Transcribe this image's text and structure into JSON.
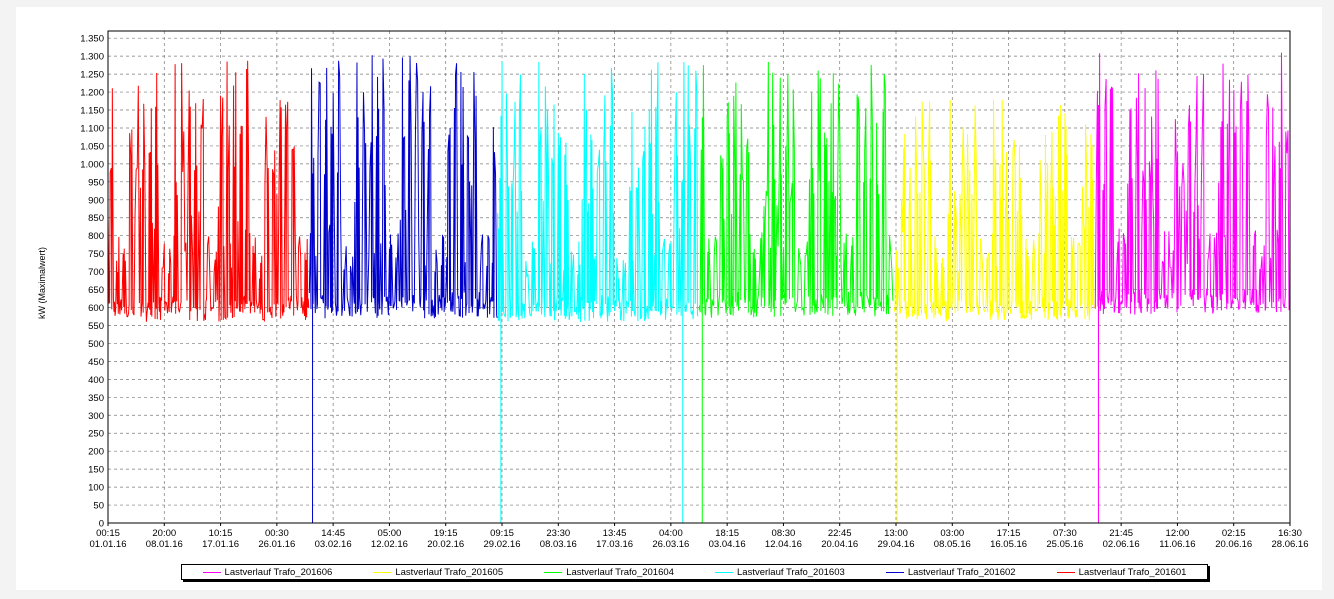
{
  "chart_data": {
    "type": "line",
    "ylabel": "kW (Maximalwert)",
    "ylim": [
      0,
      1370
    ],
    "yticks": [
      0,
      50,
      100,
      150,
      200,
      250,
      300,
      350,
      400,
      450,
      500,
      550,
      600,
      650,
      700,
      750,
      800,
      850,
      900,
      950,
      1000,
      1050,
      1100,
      1150,
      1200,
      1250,
      1300,
      1350
    ],
    "ytick_labels": [
      "0",
      "50",
      "100",
      "150",
      "200",
      "250",
      "300",
      "350",
      "400",
      "450",
      "500",
      "550",
      "600",
      "650",
      "700",
      "750",
      "800",
      "850",
      "900",
      "950",
      "1.000",
      "1.050",
      "1.100",
      "1.150",
      "1.200",
      "1.250",
      "1.300",
      "1.350"
    ],
    "x_range": [
      "2016-01-01 00:15",
      "2016-06-30 23:45"
    ],
    "grid": true,
    "legend_position": "bottom",
    "xticks": [
      {
        "time": "00:15",
        "date": "01.01.16"
      },
      {
        "time": "20:00",
        "date": "08.01.16"
      },
      {
        "time": "10:15",
        "date": "17.01.16"
      },
      {
        "time": "00:30",
        "date": "26.01.16"
      },
      {
        "time": "14:45",
        "date": "03.02.16"
      },
      {
        "time": "05:00",
        "date": "12.02.16"
      },
      {
        "time": "19:15",
        "date": "20.02.16"
      },
      {
        "time": "09:15",
        "date": "29.02.16"
      },
      {
        "time": "23:30",
        "date": "08.03.16"
      },
      {
        "time": "13:45",
        "date": "17.03.16"
      },
      {
        "time": "04:00",
        "date": "26.03.16"
      },
      {
        "time": "18:15",
        "date": "03.04.16"
      },
      {
        "time": "08:30",
        "date": "12.04.16"
      },
      {
        "time": "22:45",
        "date": "20.04.16"
      },
      {
        "time": "13:00",
        "date": "29.04.16"
      },
      {
        "time": "03:00",
        "date": "08.05.16"
      },
      {
        "time": "17:15",
        "date": "16.05.16"
      },
      {
        "time": "07:30",
        "date": "25.05.16"
      },
      {
        "time": "21:45",
        "date": "02.06.16"
      },
      {
        "time": "12:00",
        "date": "11.06.16"
      },
      {
        "time": "02:15",
        "date": "20.06.16"
      },
      {
        "time": "16:30",
        "date": "28.06.16"
      }
    ],
    "series": [
      {
        "name": "Lastverlauf Trafo_201601",
        "color": "#ff0000",
        "start": "2016-01-01",
        "end": "2016-01-31",
        "base": 600,
        "peak_max": 1350,
        "dips": []
      },
      {
        "name": "Lastverlauf Trafo_201602",
        "color": "#0000cc",
        "start": "2016-02-01",
        "end": "2016-02-29",
        "base": 610,
        "peak_max": 1370,
        "dips": [
          {
            "date": "2016-02-01",
            "value": 0
          }
        ]
      },
      {
        "name": "Lastverlauf Trafo_201603",
        "color": "#00ffff",
        "start": "2016-03-01",
        "end": "2016-03-31",
        "base": 600,
        "peak_max": 1350,
        "dips": [
          {
            "date": "2016-03-01",
            "value": 0
          },
          {
            "date": "2016-03-29",
            "value": 0
          }
        ]
      },
      {
        "name": "Lastverlauf Trafo_201604",
        "color": "#00ff00",
        "start": "2016-04-01",
        "end": "2016-04-30",
        "base": 610,
        "peak_max": 1345,
        "dips": [
          {
            "date": "2016-04-01",
            "value": 0
          }
        ]
      },
      {
        "name": "Lastverlauf Trafo_201605",
        "color": "#ffff00",
        "start": "2016-05-01",
        "end": "2016-05-31",
        "base": 600,
        "peak_max": 1240,
        "dips": [
          {
            "date": "2016-05-01",
            "value": 0
          }
        ]
      },
      {
        "name": "Lastverlauf Trafo_201606",
        "color": "#ff00ff",
        "start": "2016-06-01",
        "end": "2016-06-30",
        "base": 620,
        "peak_max": 1370,
        "dips": [
          {
            "date": "2016-06-01",
            "value": 0
          }
        ]
      }
    ],
    "legend_order": [
      "Lastverlauf Trafo_201606",
      "Lastverlauf Trafo_201605",
      "Lastverlauf Trafo_201604",
      "Lastverlauf Trafo_201603",
      "Lastverlauf Trafo_201602",
      "Lastverlauf Trafo_201601"
    ]
  }
}
